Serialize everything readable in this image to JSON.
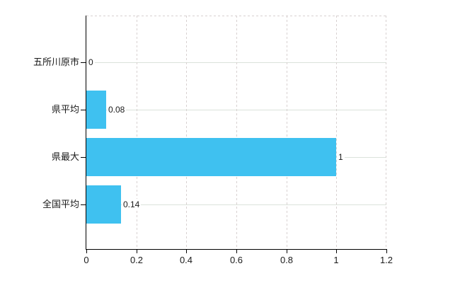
{
  "chart_data": {
    "type": "bar",
    "orientation": "horizontal",
    "title": "",
    "categories": [
      "五所川原市",
      "県平均",
      "県最大",
      "全国平均"
    ],
    "values": [
      0,
      0.08,
      1,
      0.14
    ],
    "value_labels": [
      "0",
      "0.08",
      "1",
      "0.14"
    ],
    "xlabel": "",
    "ylabel": "",
    "xlim": [
      0,
      1.2
    ],
    "x_ticks": [
      0,
      0.2,
      0.4,
      0.6,
      0.8,
      1,
      1.2
    ],
    "x_tick_labels": [
      "0",
      "0.2",
      "0.4",
      "0.6",
      "0.8",
      "1",
      "1.2"
    ],
    "grid": true,
    "legend_position": "none",
    "colors": {
      "bar_fill": "#3fc1f0",
      "axis": "#000000",
      "horizontal_grid": "#dbe2db",
      "vertical_grid": "#d8d1d1",
      "text": "#1a1a1a",
      "background": "#ffffff"
    }
  }
}
